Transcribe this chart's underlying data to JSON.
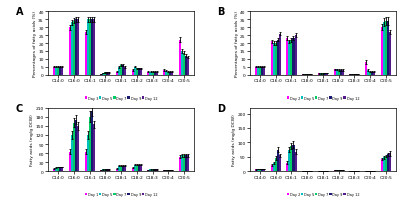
{
  "categories": [
    "C14:0",
    "C16:0",
    "C16:1",
    "C18:0",
    "C18:1",
    "C18:2",
    "C18:3",
    "C20:4",
    "C20:5"
  ],
  "panel_A": {
    "label": "A",
    "ylabel": "Percentages of fatty acids (%)",
    "ylim": [
      0,
      40
    ],
    "yticks": [
      0,
      5,
      10,
      15,
      20,
      25,
      30,
      35,
      40
    ],
    "legend_days": [
      "Day 3",
      "Day 5",
      "Day 7",
      "Day 9",
      "Day 12"
    ],
    "data": {
      "Day 3": [
        5,
        30,
        27,
        0.5,
        2.0,
        3.0,
        2.0,
        3.0,
        22
      ],
      "Day 5": [
        5,
        33,
        35,
        1.0,
        5.0,
        5.0,
        2.0,
        2.5,
        15
      ],
      "Day 7": [
        5,
        34,
        35,
        1.5,
        6.0,
        4.0,
        2.0,
        2.0,
        14
      ],
      "Day 9": [
        5,
        35,
        35,
        1.5,
        6.0,
        4.0,
        2.0,
        2.0,
        12
      ],
      "Day 12": [
        5,
        35,
        35,
        1.5,
        5.0,
        4.0,
        2.0,
        2.0,
        11
      ]
    },
    "errors": {
      "Day 3": [
        0.3,
        1.5,
        1.5,
        0.1,
        0.4,
        0.4,
        0.2,
        0.4,
        1.5
      ],
      "Day 5": [
        0.3,
        1.5,
        1.5,
        0.2,
        0.5,
        0.4,
        0.2,
        0.4,
        1.2
      ],
      "Day 7": [
        0.3,
        1.5,
        1.5,
        0.2,
        0.5,
        0.4,
        0.2,
        0.3,
        1.0
      ],
      "Day 9": [
        0.3,
        1.5,
        1.5,
        0.2,
        0.5,
        0.4,
        0.2,
        0.3,
        0.8
      ],
      "Day 12": [
        0.3,
        1.5,
        1.5,
        0.2,
        0.5,
        0.4,
        0.2,
        0.3,
        0.7
      ]
    }
  },
  "panel_B": {
    "label": "B",
    "ylabel": "Percentages of fatty acids (%)",
    "ylim": [
      0,
      40
    ],
    "yticks": [
      0,
      5,
      10,
      15,
      20,
      25,
      30,
      35,
      40
    ],
    "legend_days": [
      "Day 2",
      "Day 5",
      "Day 7",
      "Day 9",
      "Day 12"
    ],
    "data": {
      "Day 2": [
        5.0,
        21,
        23,
        0.3,
        0.8,
        3.5,
        0.4,
        8.0,
        30
      ],
      "Day 5": [
        5.0,
        20,
        21,
        0.3,
        0.8,
        3.5,
        0.4,
        3.0,
        33
      ],
      "Day 7": [
        5.0,
        20,
        22,
        0.3,
        0.8,
        3.0,
        0.4,
        2.0,
        34
      ],
      "Day 9": [
        5.0,
        22,
        23,
        0.3,
        1.0,
        3.0,
        0.4,
        2.0,
        34
      ],
      "Day 12": [
        5.0,
        26,
        25,
        0.3,
        1.0,
        3.0,
        0.4,
        2.0,
        27
      ]
    },
    "errors": {
      "Day 2": [
        0.3,
        1.0,
        1.2,
        0.05,
        0.2,
        0.4,
        0.1,
        1.5,
        2.0
      ],
      "Day 5": [
        0.3,
        1.0,
        1.2,
        0.05,
        0.2,
        0.4,
        0.1,
        0.5,
        2.5
      ],
      "Day 7": [
        0.3,
        1.0,
        1.2,
        0.05,
        0.2,
        0.4,
        0.1,
        0.5,
        2.5
      ],
      "Day 9": [
        0.3,
        1.0,
        1.2,
        0.05,
        0.2,
        0.4,
        0.1,
        0.5,
        2.5
      ],
      "Day 12": [
        0.3,
        1.2,
        1.5,
        0.05,
        0.2,
        0.4,
        0.1,
        0.4,
        1.5
      ]
    }
  },
  "panel_C": {
    "label": "C",
    "ylabel": "Fatty acids (mg/g DCW)",
    "ylim": [
      0,
      210
    ],
    "yticks": [
      0,
      30,
      60,
      90,
      120,
      150,
      180,
      210
    ],
    "legend_days": [
      "Day 1",
      "Day 5",
      "Day 7",
      "Day 9",
      "Day 12"
    ],
    "data": {
      "Day 1": [
        8,
        65,
        65,
        4,
        8,
        12,
        4,
        4,
        48
      ],
      "Day 5": [
        12,
        120,
        120,
        6,
        18,
        22,
        6,
        4,
        52
      ],
      "Day 7": [
        14,
        160,
        180,
        6,
        18,
        22,
        6,
        4,
        52
      ],
      "Day 9": [
        14,
        170,
        200,
        6,
        18,
        22,
        6,
        4,
        52
      ],
      "Day 12": [
        14,
        150,
        155,
        6,
        18,
        22,
        6,
        4,
        52
      ]
    },
    "errors": {
      "Day 1": [
        1,
        8,
        8,
        0.5,
        2,
        2,
        0.5,
        0.5,
        4
      ],
      "Day 5": [
        1,
        12,
        12,
        0.5,
        2,
        2,
        0.5,
        0.5,
        4
      ],
      "Day 7": [
        1,
        15,
        18,
        0.5,
        2,
        2,
        0.5,
        0.5,
        4
      ],
      "Day 9": [
        1,
        15,
        18,
        0.5,
        2,
        2,
        0.5,
        0.5,
        4
      ],
      "Day 12": [
        1,
        12,
        12,
        0.5,
        2,
        2,
        0.5,
        0.5,
        4
      ]
    }
  },
  "panel_D": {
    "label": "D",
    "ylabel": "Fatty acids (mg/g DCW)",
    "ylim": [
      0,
      220
    ],
    "yticks": [
      0,
      50,
      100,
      150,
      200
    ],
    "legend_days": [
      "Day 2",
      "Day 5",
      "Day 7",
      "Day 9",
      "Day 12"
    ],
    "data": {
      "Day 2": [
        6,
        22,
        30,
        0.8,
        1.5,
        4,
        0.8,
        1.5,
        42
      ],
      "Day 5": [
        8,
        28,
        75,
        0.8,
        1.5,
        4,
        0.8,
        1.5,
        48
      ],
      "Day 7": [
        8,
        45,
        88,
        0.8,
        1.5,
        4,
        0.8,
        1.5,
        52
      ],
      "Day 9": [
        8,
        75,
        92,
        0.8,
        1.5,
        4,
        0.8,
        1.5,
        58
      ],
      "Day 12": [
        8,
        55,
        68,
        0.8,
        1.5,
        4,
        0.8,
        1.5,
        62
      ]
    },
    "errors": {
      "Day 2": [
        0.8,
        4,
        6,
        0.1,
        0.4,
        0.8,
        0.1,
        0.4,
        4
      ],
      "Day 5": [
        0.8,
        4,
        8,
        0.1,
        0.4,
        0.8,
        0.1,
        0.4,
        4
      ],
      "Day 7": [
        0.8,
        6,
        10,
        0.1,
        0.4,
        0.8,
        0.1,
        0.4,
        4
      ],
      "Day 9": [
        0.8,
        8,
        12,
        0.1,
        0.4,
        0.8,
        0.1,
        0.4,
        6
      ],
      "Day 12": [
        0.8,
        6,
        8,
        0.1,
        0.4,
        0.8,
        0.1,
        0.4,
        8
      ]
    }
  },
  "colors": [
    "#FF00FF",
    "#00BFBF",
    "#00CC66",
    "#191970",
    "#551A8B"
  ],
  "bar_width": 0.13,
  "background_color": "#ffffff"
}
